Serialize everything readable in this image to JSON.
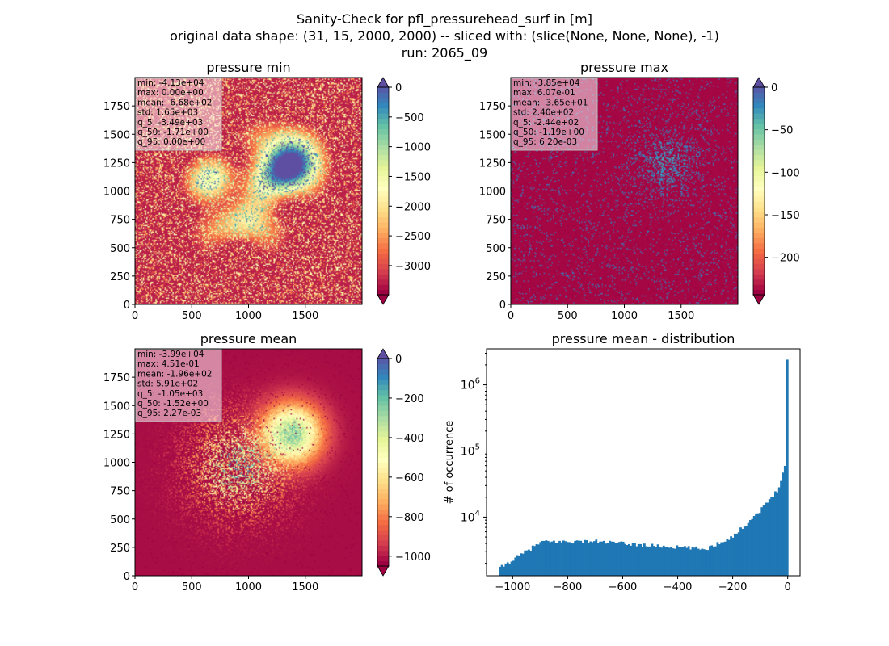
{
  "suptitle": {
    "line1": "Sanity-Check for pfl_pressurehead_surf in [m]",
    "line2": "original data shape: (31, 15, 2000, 2000) -- sliced with: (slice(None, None, None), -1)",
    "line3": "run: 2065_09"
  },
  "colors": {
    "spectral": [
      "#9e0142",
      "#d53e4f",
      "#f46d43",
      "#fdae61",
      "#fee08b",
      "#ffffbf",
      "#e6f598",
      "#abdda4",
      "#66c2a5",
      "#3288bd",
      "#5e4fa2"
    ],
    "hist_bar": "#1f77b4"
  },
  "chart_data": [
    {
      "type": "heatmap",
      "title": "pressure min",
      "colormap": "Spectral",
      "x_ticks": [
        0,
        500,
        1000,
        1500
      ],
      "y_ticks": [
        0,
        250,
        500,
        750,
        1000,
        1250,
        1500,
        1750
      ],
      "xlim": [
        0,
        2000
      ],
      "ylim": [
        0,
        2000
      ],
      "clim": [
        -3490,
        0
      ],
      "colorbar_ticks": [
        0,
        -500,
        -1000,
        -1500,
        -2000,
        -2500,
        -3000
      ],
      "colorbar_extend": "both",
      "stats": [
        "min: -4.13e+04",
        "max: 0.00e+00",
        "mean: -6.68e+02",
        "std: 1.65e+03",
        "q_5: -3.49e+03",
        "q_50: -1.71e+00",
        "q_95: 0.00e+00"
      ]
    },
    {
      "type": "heatmap",
      "title": "pressure max",
      "colormap": "Spectral",
      "x_ticks": [
        0,
        500,
        1000,
        1500
      ],
      "y_ticks": [
        0,
        250,
        500,
        750,
        1000,
        1250,
        1500,
        1750
      ],
      "xlim": [
        0,
        2000
      ],
      "ylim": [
        0,
        2000
      ],
      "clim": [
        -244,
        0
      ],
      "colorbar_ticks": [
        0,
        -50,
        -100,
        -150,
        -200
      ],
      "colorbar_extend": "both",
      "stats": [
        "min: -3.85e+04",
        "max: 6.07e-01",
        "mean: -3.65e+01",
        "std: 2.40e+02",
        "q_5: -2.44e+02",
        "q_50: -1.19e+00",
        "q_95: 6.20e-03"
      ]
    },
    {
      "type": "heatmap",
      "title": "pressure mean",
      "colormap": "Spectral",
      "x_ticks": [
        0,
        500,
        1000,
        1500
      ],
      "y_ticks": [
        0,
        250,
        500,
        750,
        1000,
        1250,
        1500,
        1750
      ],
      "xlim": [
        0,
        2000
      ],
      "ylim": [
        0,
        2000
      ],
      "clim": [
        -1050,
        0
      ],
      "colorbar_ticks": [
        0,
        -200,
        -400,
        -600,
        -800,
        -1000
      ],
      "colorbar_extend": "both",
      "stats": [
        "min: -3.99e+04",
        "max: 4.51e-01",
        "mean: -1.96e+02",
        "std: 5.91e+02",
        "q_5: -1.05e+03",
        "q_50: -1.52e+00",
        "q_95: 2.27e-03"
      ]
    },
    {
      "type": "bar",
      "title": "pressure mean - distribution",
      "ylabel": "# of occurrence",
      "xlabel": "",
      "yscale": "log",
      "xlim": [
        -1095,
        45
      ],
      "ylim": [
        1300,
        3500000
      ],
      "x_ticks": [
        -1000,
        -800,
        -600,
        -400,
        -200,
        0
      ],
      "y_ticks": [
        10000,
        100000,
        1000000
      ],
      "bins": [
        {
          "x0": -1050,
          "x1": -900,
          "y0": 1700,
          "y1": 4200
        },
        {
          "x0": -900,
          "x1": -700,
          "y0": 4200,
          "y1": 4300
        },
        {
          "x0": -700,
          "x1": -500,
          "y0": 4300,
          "y1": 3700
        },
        {
          "x0": -500,
          "x1": -300,
          "y0": 3700,
          "y1": 3300
        },
        {
          "x0": -300,
          "x1": -200,
          "y0": 3300,
          "y1": 5200
        },
        {
          "x0": -200,
          "x1": -100,
          "y0": 5200,
          "y1": 13000
        },
        {
          "x0": -100,
          "x1": -40,
          "y0": 13000,
          "y1": 26000
        },
        {
          "x0": -40,
          "x1": -10,
          "y0": 26000,
          "y1": 65000
        },
        {
          "x0": -10,
          "x1": -3,
          "y0": 65000,
          "y1": 70000
        }
      ],
      "spike": {
        "x": 0,
        "y": 2400000
      }
    }
  ]
}
